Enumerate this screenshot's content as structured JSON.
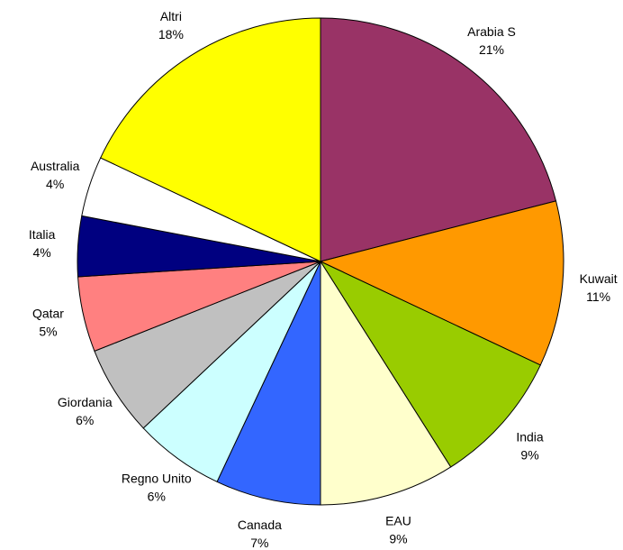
{
  "chart_data": {
    "type": "pie",
    "categories": [
      "Arabia S",
      "Kuwait",
      "India",
      "EAU",
      "Canada",
      "Regno Unito",
      "Giordania",
      "Qatar",
      "Italia",
      "Australia",
      "Altri"
    ],
    "values": [
      21,
      11,
      9,
      9,
      7,
      6,
      6,
      5,
      4,
      4,
      18
    ],
    "value_labels": [
      "21%",
      "11%",
      "9%",
      "9%",
      "7%",
      "6%",
      "6%",
      "5%",
      "4%",
      "4%",
      "18%"
    ],
    "colors": [
      "#993366",
      "#ff9900",
      "#99cc00",
      "#ffffcc",
      "#3366ff",
      "#ccffff",
      "#c0c0c0",
      "#ff8080",
      "#000080",
      "#ffffff",
      "#ffff00"
    ]
  }
}
